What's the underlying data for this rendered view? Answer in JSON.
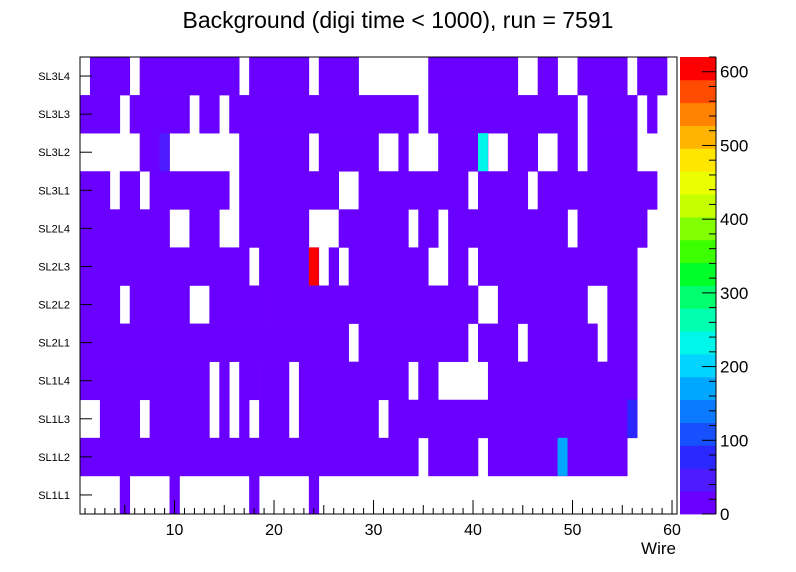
{
  "chart_data": {
    "type": "heatmap",
    "title": "Background (digi time < 1000), run = 7591",
    "xlabel": "Wire",
    "ylabel": "",
    "x_range": [
      0.5,
      60.5
    ],
    "x_ticks": [
      10,
      20,
      30,
      40,
      50,
      60
    ],
    "y_categories": [
      "SL1L1",
      "SL1L2",
      "SL1L3",
      "SL1L4",
      "SL2L1",
      "SL2L2",
      "SL2L3",
      "SL2L4",
      "SL3L1",
      "SL3L2",
      "SL3L3",
      "SL3L4"
    ],
    "colorbar": {
      "range": [
        0,
        620
      ],
      "ticks": [
        0,
        100,
        200,
        300,
        400,
        500,
        600
      ],
      "palette": [
        "#6a00ff",
        "#4c1bff",
        "#2a28ff",
        "#1650ff",
        "#0b7aff",
        "#00a7ff",
        "#00d4ff",
        "#00f6e8",
        "#00ffb0",
        "#00ff6e",
        "#00ff28",
        "#3cff00",
        "#82ff00",
        "#c6ff00",
        "#ecff00",
        "#ffe600",
        "#ffb400",
        "#ff8200",
        "#ff4c00",
        "#ff0000"
      ]
    },
    "base_value": 5,
    "filled_ranges": [
      [
        [
          5,
          5
        ],
        [
          10,
          10
        ],
        [
          18,
          18
        ],
        [
          24,
          24
        ]
      ],
      [
        [
          1,
          34
        ],
        [
          36,
          40
        ],
        [
          42,
          55
        ]
      ],
      [
        [
          3,
          6
        ],
        [
          8,
          13
        ],
        [
          15,
          15
        ],
        [
          17,
          17
        ],
        [
          19,
          21
        ],
        [
          23,
          30
        ],
        [
          32,
          56
        ]
      ],
      [
        [
          1,
          13
        ],
        [
          15,
          15
        ],
        [
          17,
          18
        ],
        [
          19,
          21
        ],
        [
          23,
          33
        ],
        [
          35,
          36
        ],
        [
          42,
          55
        ],
        [
          56,
          56
        ]
      ],
      [
        [
          1,
          27
        ],
        [
          29,
          39
        ],
        [
          41,
          44
        ],
        [
          46,
          52
        ],
        [
          54,
          56
        ]
      ],
      [
        [
          1,
          4
        ],
        [
          6,
          11
        ],
        [
          14,
          19
        ],
        [
          20,
          40
        ],
        [
          43,
          51
        ],
        [
          54,
          56
        ]
      ],
      [
        [
          1,
          17
        ],
        [
          19,
          23
        ],
        [
          24,
          24
        ],
        [
          26,
          26
        ],
        [
          28,
          35
        ],
        [
          38,
          39
        ],
        [
          41,
          56
        ]
      ],
      [
        [
          1,
          9
        ],
        [
          12,
          14
        ],
        [
          17,
          23
        ],
        [
          27,
          33
        ],
        [
          35,
          36
        ],
        [
          38,
          49
        ],
        [
          51,
          57
        ]
      ],
      [
        [
          1,
          3
        ],
        [
          5,
          6
        ],
        [
          8,
          15
        ],
        [
          17,
          26
        ],
        [
          29,
          39
        ],
        [
          41,
          45
        ],
        [
          47,
          58
        ]
      ],
      [
        [
          7,
          8
        ],
        [
          9,
          9
        ],
        [
          17,
          23
        ],
        [
          25,
          30
        ],
        [
          33,
          33
        ],
        [
          37,
          40
        ],
        [
          41,
          41
        ],
        [
          44,
          46
        ],
        [
          49,
          50
        ],
        [
          52,
          56
        ]
      ],
      [
        [
          1,
          4
        ],
        [
          6,
          11
        ],
        [
          13,
          14
        ],
        [
          16,
          34
        ],
        [
          36,
          50
        ],
        [
          52,
          56
        ],
        [
          58,
          58
        ]
      ],
      [
        [
          2,
          5
        ],
        [
          7,
          16
        ],
        [
          18,
          23
        ],
        [
          25,
          28
        ],
        [
          36,
          41
        ],
        [
          42,
          44
        ],
        [
          47,
          48
        ],
        [
          51,
          55
        ],
        [
          57,
          59
        ]
      ]
    ],
    "highlighted_cells": [
      {
        "wire": 49,
        "layer": "SL1L2",
        "value": 170
      },
      {
        "wire": 56,
        "layer": "SL1L3",
        "value": 70
      },
      {
        "wire": 24,
        "layer": "SL2L3",
        "value": 610
      },
      {
        "wire": 9,
        "layer": "SL3L2",
        "value": 60
      },
      {
        "wire": 41,
        "layer": "SL3L2",
        "value": 230
      }
    ]
  }
}
